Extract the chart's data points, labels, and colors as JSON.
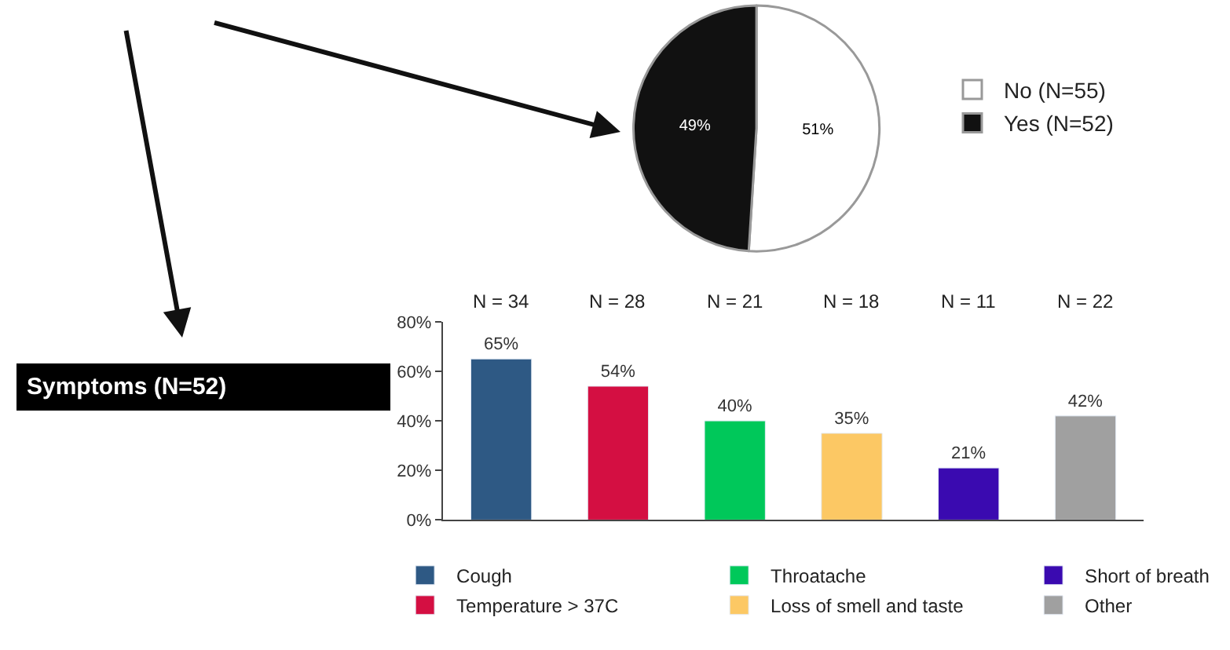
{
  "chart_data": [
    {
      "type": "pie",
      "categories": [
        "No (N=55)",
        "Yes (N=52)"
      ],
      "values": [
        51,
        49
      ],
      "colors": [
        "#ffffff",
        "#111111"
      ],
      "value_labels": [
        "51%",
        "49%"
      ],
      "legend": "right"
    },
    {
      "type": "bar",
      "categories": [
        null,
        null,
        null,
        null,
        null,
        null
      ],
      "series": [
        {
          "name": "Cough",
          "color": "#2e5984",
          "values": [
            65,
            null,
            null,
            null,
            null,
            null
          ],
          "value_labels": [
            "65%",
            null,
            null,
            null,
            null,
            null
          ]
        },
        {
          "name": "Temperature > 37C",
          "color": "#d40f42",
          "values": [
            null,
            54,
            null,
            null,
            null,
            null
          ],
          "value_labels": [
            null,
            "54%",
            null,
            null,
            null,
            null
          ]
        },
        {
          "name": "Throatache",
          "color": "#00c85a",
          "values": [
            null,
            null,
            40,
            null,
            null,
            null
          ],
          "value_labels": [
            null,
            null,
            "40%",
            null,
            null,
            null
          ]
        },
        {
          "name": "Loss of smell and taste",
          "color": "#fcc864",
          "values": [
            null,
            null,
            null,
            35,
            null,
            null
          ],
          "value_labels": [
            null,
            null,
            null,
            "35%",
            null,
            null
          ]
        },
        {
          "name": "Short of breath",
          "color": "#3a0ab0",
          "values": [
            null,
            null,
            null,
            null,
            21,
            null
          ],
          "value_labels": [
            null,
            null,
            null,
            null,
            "21%",
            null
          ]
        },
        {
          "name": "Other",
          "color": "#a0a0a0",
          "values": [
            null,
            null,
            null,
            null,
            null,
            42
          ],
          "value_labels": [
            null,
            null,
            null,
            null,
            null,
            "42%"
          ]
        }
      ],
      "annotations": [
        "Symptoms (N=52)",
        "N = 34",
        "N = 28",
        "N = 21",
        "N = 18",
        "N = 11",
        "N = 22"
      ],
      "ylim": [
        0,
        80
      ],
      "yticks": [
        {
          "value": 0,
          "label": "0%"
        },
        {
          "value": 20,
          "label": "20%"
        },
        {
          "value": 40,
          "label": "40%"
        },
        {
          "value": 60,
          "label": "60%"
        },
        {
          "value": 80,
          "label": "80%"
        }
      ],
      "tick_labels": "y",
      "legend": "bottom"
    }
  ]
}
